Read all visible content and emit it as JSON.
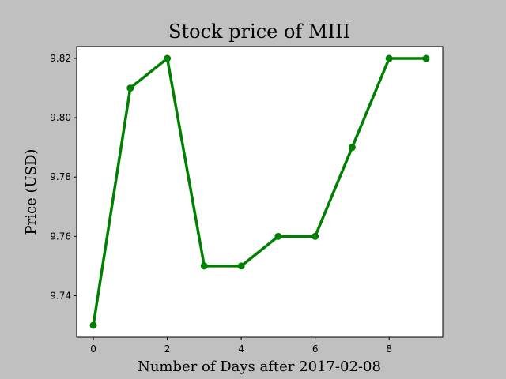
{
  "chart_data": {
    "type": "line",
    "title": "Stock price of MIII",
    "xlabel": "Number of Days after 2017-02-08",
    "ylabel": "Price (USD)",
    "x": [
      0,
      1,
      2,
      3,
      4,
      5,
      6,
      7,
      8,
      9
    ],
    "series": [
      {
        "values": [
          9.73,
          9.81,
          9.82,
          9.75,
          9.75,
          9.76,
          9.76,
          9.79,
          9.82,
          9.82
        ],
        "color": "#008000"
      }
    ],
    "xlim": [
      -0.45,
      9.45
    ],
    "ylim": [
      9.726,
      9.824
    ],
    "xticks": [
      0,
      2,
      4,
      6,
      8
    ],
    "yticks": [
      9.74,
      9.76,
      9.78,
      9.8,
      9.82
    ],
    "xtick_labels": [
      "0",
      "2",
      "4",
      "6",
      "8"
    ],
    "ytick_labels": [
      "9.74",
      "9.76",
      "9.78",
      "9.80",
      "9.82"
    ],
    "grid": false,
    "marker": "circle"
  }
}
